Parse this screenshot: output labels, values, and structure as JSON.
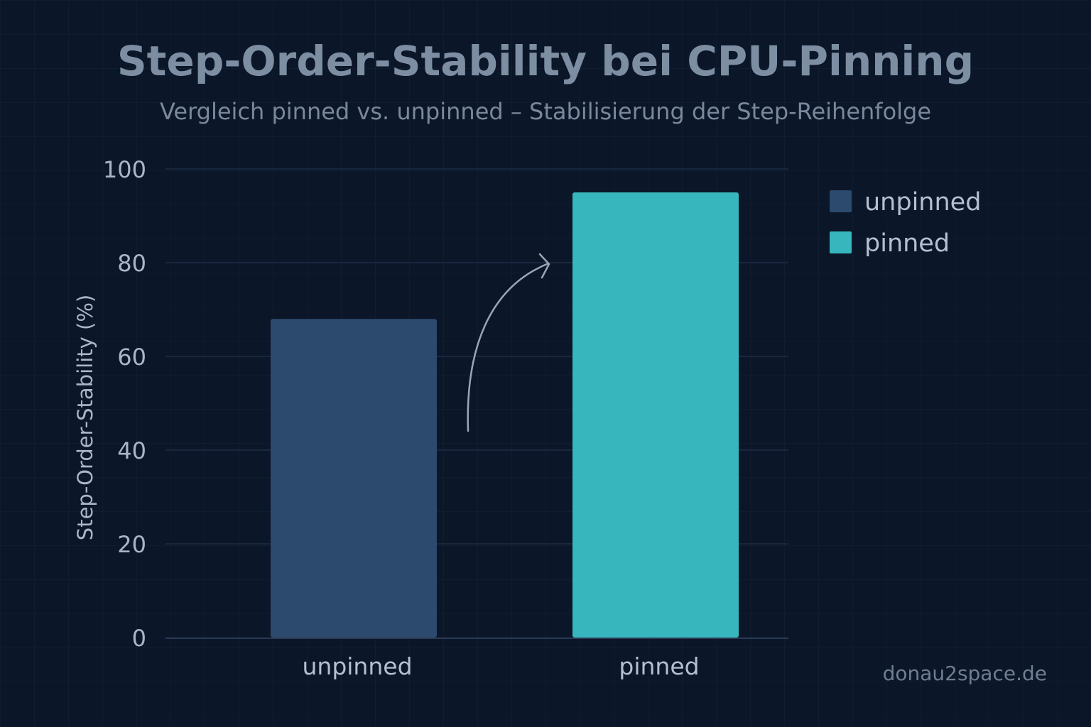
{
  "title": "Step-Order-Stability bei CPU-Pinning",
  "subtitle": "Vergleich pinned vs. unpinned – Stabilisierung der Step-Reihenfolge",
  "watermark": "donau2space.de",
  "colors": {
    "background": "#0b1628",
    "unpinned": "#2c4a6e",
    "pinned": "#37b6bd",
    "text": "#b4c0d0",
    "axis_text": "#aab6c6",
    "grid": "#1e2d44",
    "arrow": "#9aa6b6"
  },
  "chart_data": {
    "type": "bar",
    "categories": [
      "unpinned",
      "pinned"
    ],
    "values": [
      68,
      95
    ],
    "ylabel": "Step-Order-Stability (%)",
    "xlabel": "",
    "ylim": [
      0,
      100
    ],
    "yticks": [
      0,
      20,
      40,
      60,
      80,
      100
    ],
    "grid": true,
    "legend": {
      "placement": "top-right",
      "entries": [
        "unpinned",
        "pinned"
      ]
    },
    "annotations": [
      {
        "type": "curved-arrow",
        "from": "unpinned",
        "to": "pinned"
      }
    ]
  }
}
